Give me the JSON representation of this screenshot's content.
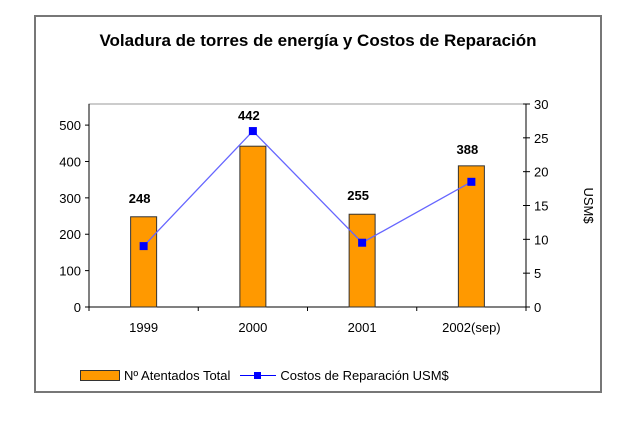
{
  "chart_data": {
    "type": "bar+line",
    "title": "Voladura de torres de energía y Costos de Reparación",
    "categories": [
      "1999",
      "2000",
      "2001",
      "2002(sep)"
    ],
    "series": [
      {
        "name": "Nº Atentados Total",
        "type": "bar",
        "axis": "left",
        "values": [
          248,
          442,
          255,
          388
        ],
        "color": "#ff9900",
        "data_labels": [
          "248",
          "442",
          "255",
          "388"
        ]
      },
      {
        "name": "Costos de Reparación USM$",
        "type": "line",
        "axis": "right",
        "values": [
          9,
          26,
          9.5,
          18.5
        ],
        "color": "#0000ff"
      }
    ],
    "y_left": {
      "ticks": [
        "0",
        "100",
        "200",
        "300",
        "400",
        "500"
      ],
      "ylim": [
        0,
        558
      ]
    },
    "y_right": {
      "label": "USM$",
      "ticks": [
        "0",
        "5",
        "10",
        "15",
        "20",
        "25",
        "30"
      ],
      "ylim": [
        0,
        30
      ]
    },
    "legend": "bottom"
  }
}
